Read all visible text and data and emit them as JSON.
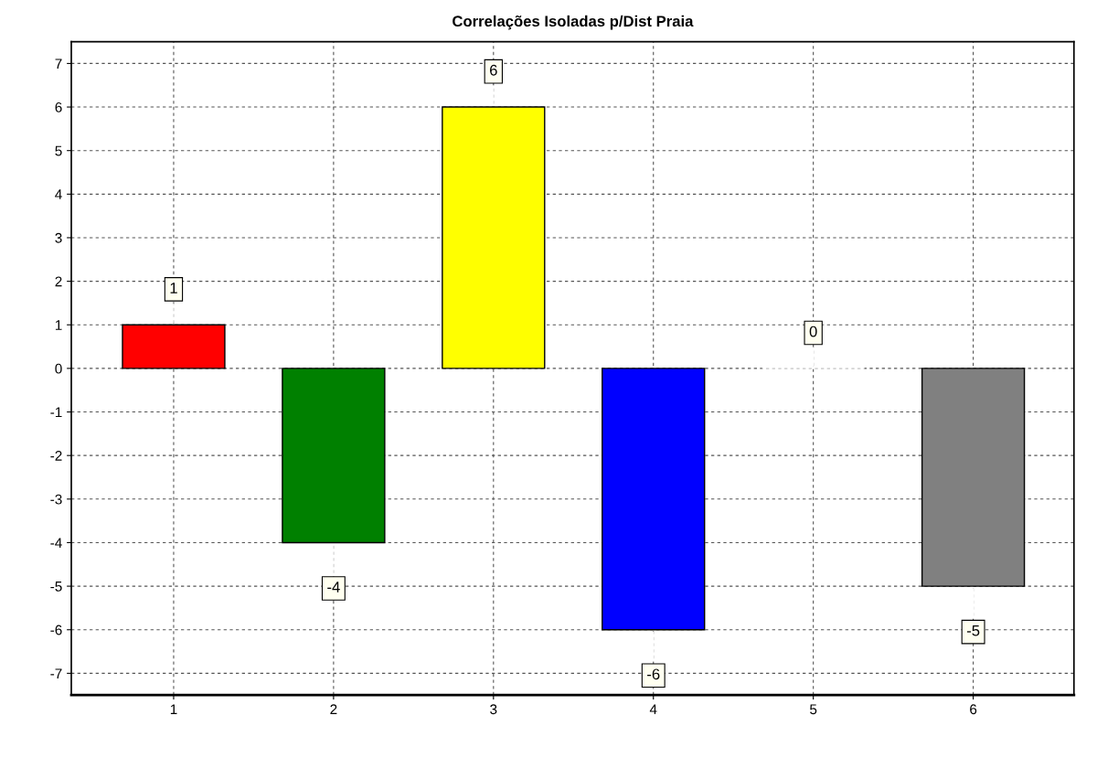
{
  "chart_data": {
    "type": "bar",
    "title": "Correlações Isoladas p/Dist Praia",
    "categories": [
      "1",
      "2",
      "3",
      "4",
      "5",
      "6"
    ],
    "values": [
      1,
      -4,
      6,
      -6,
      0,
      -5
    ],
    "colors": [
      "#ff0000",
      "#008000",
      "#ffff00",
      "#0000ff",
      "#ffffff",
      "#808080"
    ],
    "ylim": [
      -7.5,
      7.5
    ],
    "yticks": [
      -7,
      -6,
      -5,
      -4,
      -3,
      -2,
      -1,
      0,
      1,
      2,
      3,
      4,
      5,
      6,
      7
    ],
    "grid": true,
    "data_labels": true
  }
}
